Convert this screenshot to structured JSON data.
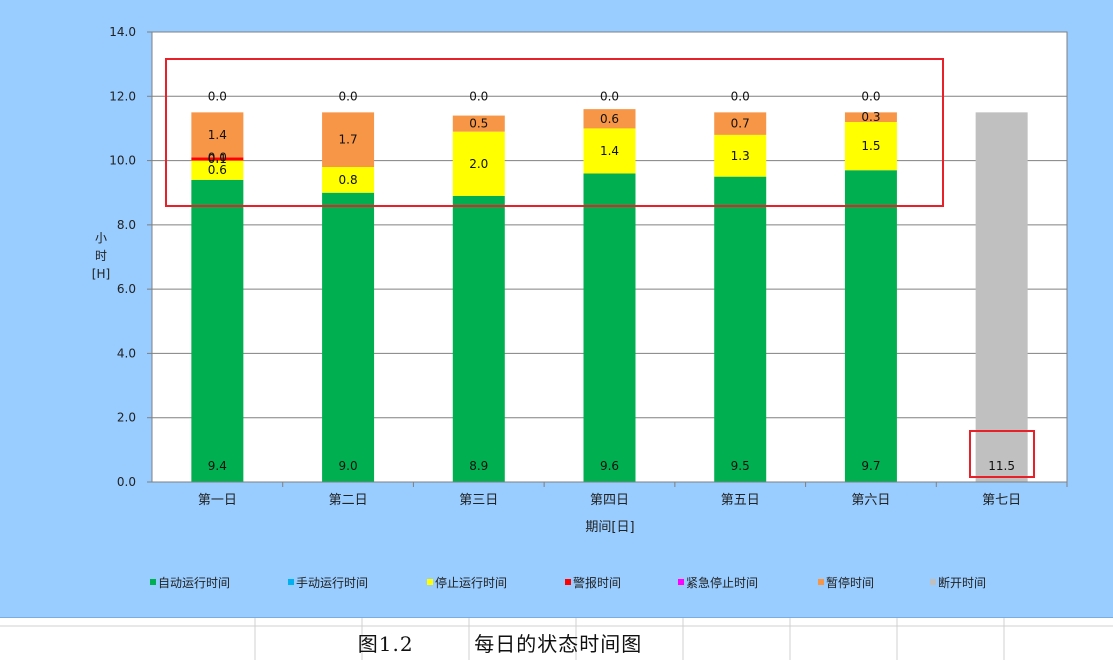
{
  "caption": {
    "number": "图1.2",
    "text": "每日的状态时间图"
  },
  "chart_data": {
    "type": "bar",
    "stacked": true,
    "title": "",
    "xlabel": "期间[日]",
    "ylabel": "小时[H]",
    "ylim": [
      0,
      14
    ],
    "yticks": [
      "0.0",
      "2.0",
      "4.0",
      "6.0",
      "8.0",
      "10.0",
      "12.0",
      "14.0"
    ],
    "grid": true,
    "legend_position": "bottom",
    "categories": [
      "第一日",
      "第二日",
      "第三日",
      "第四日",
      "第五日",
      "第六日",
      "第七日"
    ],
    "series": [
      {
        "name": "自动运行时间",
        "color": "#00b050",
        "values": [
          9.4,
          9.0,
          8.9,
          9.6,
          9.5,
          9.7,
          0
        ],
        "labels": [
          "9.4",
          "9.0",
          "8.9",
          "9.6",
          "9.5",
          "9.7",
          ""
        ]
      },
      {
        "name": "手动运行时间",
        "color": "#00b0f0",
        "values": [
          0,
          0,
          0,
          0,
          0,
          0,
          0
        ],
        "labels": [
          "",
          "",
          "",
          "",
          "",
          "",
          ""
        ]
      },
      {
        "name": "停止运行时间",
        "color": "#ffff00",
        "values": [
          0.6,
          0.8,
          2.0,
          1.4,
          1.3,
          1.5,
          0
        ],
        "labels": [
          "0.6",
          "0.8",
          "2.0",
          "1.4",
          "1.3",
          "1.5",
          ""
        ]
      },
      {
        "name": "警报时间",
        "color": "#ff0000",
        "values": [
          0.1,
          0,
          0,
          0,
          0,
          0,
          0
        ],
        "labels": [
          "0.1",
          "",
          "",
          "",
          "",
          "",
          ""
        ]
      },
      {
        "name": "紧急停止时间",
        "color": "#ff00ff",
        "values": [
          0,
          0,
          0,
          0,
          0,
          0,
          0
        ],
        "labels": [
          "0.0",
          "",
          "",
          "",
          "",
          "",
          ""
        ]
      },
      {
        "name": "暂停时间",
        "color": "#f79646",
        "values": [
          1.4,
          1.7,
          0.5,
          0.6,
          0.7,
          0.3,
          0
        ],
        "labels": [
          "1.4",
          "1.7",
          "0.5",
          "0.6",
          "0.7",
          "0.3",
          ""
        ]
      },
      {
        "name": "断开时间",
        "color": "#c0c0c0",
        "values": [
          0,
          0,
          0,
          0,
          0,
          0,
          11.5
        ],
        "labels": [
          "0.0",
          "0.0",
          "0.0",
          "0.0",
          "0.0",
          "0.0",
          "11.5"
        ]
      }
    ],
    "annotations": [
      {
        "type": "highlight-box",
        "color": "#ff0000",
        "target": "第一日–第六日 upper segments"
      },
      {
        "type": "highlight-box",
        "color": "#ff0000",
        "target": "第七日 label 11.5"
      }
    ]
  }
}
